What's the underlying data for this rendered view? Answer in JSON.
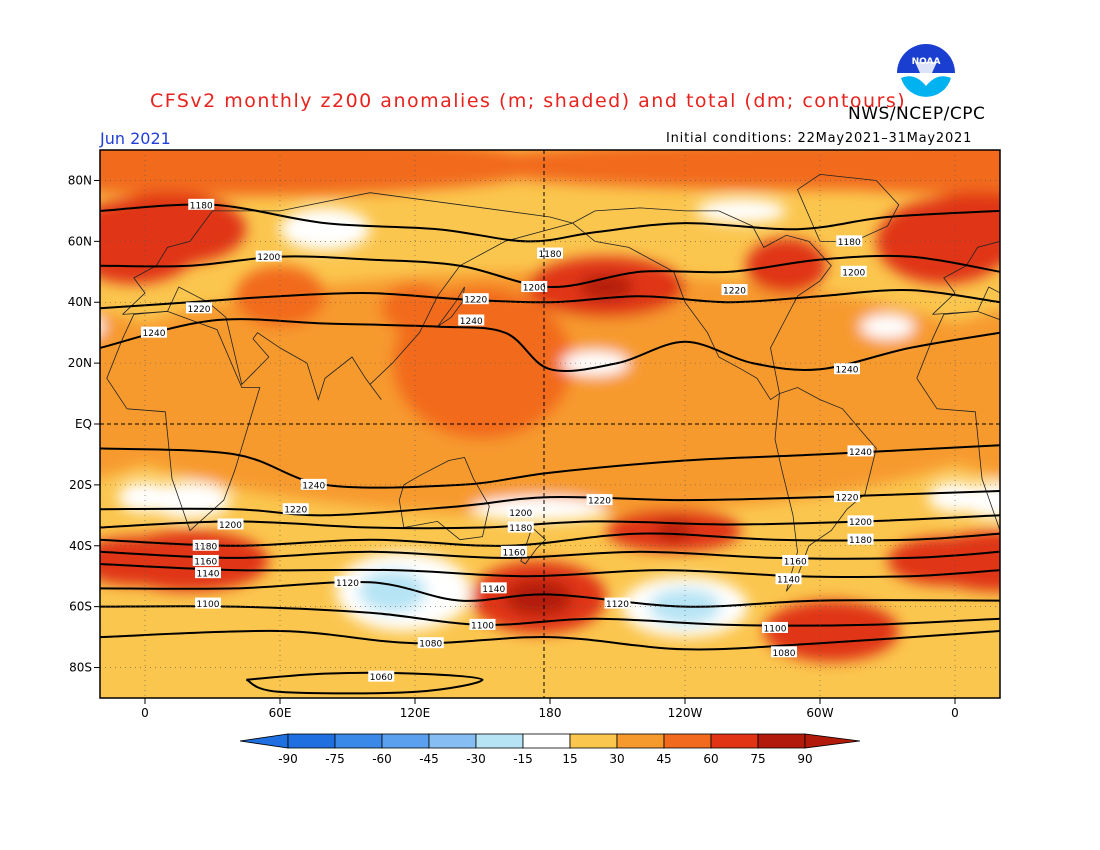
{
  "title": "CFSv2 monthly z200 anomalies (m; shaded) and total (dm; contours)",
  "month": "Jun 2021",
  "org": "NWS/NCEP/CPC",
  "initial_conditions": "Initial conditions: 22May2021–31May2021",
  "logo": {
    "text": "NOAA",
    "name": "noaa-logo"
  },
  "lat_labels": [
    {
      "lat": 80,
      "label": "80N"
    },
    {
      "lat": 60,
      "label": "60N"
    },
    {
      "lat": 40,
      "label": "40N"
    },
    {
      "lat": 20,
      "label": "20N"
    },
    {
      "lat": 0,
      "label": "EQ"
    },
    {
      "lat": -20,
      "label": "20S"
    },
    {
      "lat": -40,
      "label": "40S"
    },
    {
      "lat": -60,
      "label": "60S"
    },
    {
      "lat": -80,
      "label": "80S"
    }
  ],
  "lon_labels": [
    {
      "lon": 0,
      "label": "0"
    },
    {
      "lon": 60,
      "label": "60E"
    },
    {
      "lon": 120,
      "label": "120E"
    },
    {
      "lon": 180,
      "label": "180"
    },
    {
      "lon": 240,
      "label": "120W"
    },
    {
      "lon": 300,
      "label": "60W"
    },
    {
      "lon": 360,
      "label": "0"
    }
  ],
  "colorbar": {
    "labels": [
      "-90",
      "-75",
      "-60",
      "-45",
      "-30",
      "-15",
      "15",
      "30",
      "45",
      "60",
      "75",
      "90"
    ],
    "colors": [
      "#1f6fe0",
      "#3a88e8",
      "#5aa0ee",
      "#86bdf2",
      "#b6e4f4",
      "#ffffff",
      "#fde58a",
      "#fbc64e",
      "#f79a2e",
      "#f26a1e",
      "#e03414",
      "#b21a0c"
    ]
  },
  "contours": [
    {
      "label": "1180",
      "points": [
        [
          -20,
          70
        ],
        [
          30,
          72
        ],
        [
          80,
          66
        ],
        [
          130,
          64
        ],
        [
          170,
          60
        ],
        [
          200,
          63
        ],
        [
          240,
          66
        ],
        [
          290,
          64
        ],
        [
          330,
          68
        ],
        [
          380,
          70
        ]
      ]
    },
    {
      "label": "1200",
      "points": [
        [
          -20,
          52
        ],
        [
          20,
          52
        ],
        [
          60,
          55
        ],
        [
          100,
          54
        ],
        [
          140,
          52
        ],
        [
          180,
          45
        ],
        [
          220,
          50
        ],
        [
          260,
          50
        ],
        [
          300,
          54
        ],
        [
          340,
          55
        ],
        [
          380,
          50
        ]
      ]
    },
    {
      "label": "1220",
      "points": [
        [
          -20,
          38
        ],
        [
          20,
          40
        ],
        [
          60,
          42
        ],
        [
          100,
          43
        ],
        [
          140,
          41
        ],
        [
          180,
          40
        ],
        [
          220,
          42
        ],
        [
          260,
          40
        ],
        [
          300,
          42
        ],
        [
          340,
          44
        ],
        [
          380,
          40
        ]
      ]
    },
    {
      "label": "1240",
      "points": [
        [
          -20,
          25
        ],
        [
          30,
          34
        ],
        [
          80,
          33
        ],
        [
          130,
          32
        ],
        [
          160,
          30
        ],
        [
          180,
          18
        ],
        [
          210,
          20
        ],
        [
          240,
          27
        ],
        [
          270,
          20
        ],
        [
          300,
          18
        ],
        [
          340,
          25
        ],
        [
          380,
          30
        ]
      ]
    },
    {
      "label": "1240",
      "points": [
        [
          -20,
          -8
        ],
        [
          40,
          -10
        ],
        [
          80,
          -20
        ],
        [
          140,
          -20
        ],
        [
          180,
          -16
        ],
        [
          240,
          -12
        ],
        [
          300,
          -10
        ],
        [
          380,
          -7
        ]
      ]
    },
    {
      "label": "1220",
      "points": [
        [
          -20,
          -28
        ],
        [
          40,
          -28
        ],
        [
          80,
          -30
        ],
        [
          140,
          -27
        ],
        [
          180,
          -24
        ],
        [
          240,
          -25
        ],
        [
          300,
          -24
        ],
        [
          380,
          -22
        ]
      ]
    },
    {
      "label": "1200",
      "points": [
        [
          -20,
          -34
        ],
        [
          40,
          -32
        ],
        [
          100,
          -34
        ],
        [
          150,
          -34
        ],
        [
          200,
          -32
        ],
        [
          260,
          -33
        ],
        [
          320,
          -32
        ],
        [
          380,
          -30
        ]
      ]
    },
    {
      "label": "1180",
      "points": [
        [
          -20,
          -38
        ],
        [
          40,
          -40
        ],
        [
          100,
          -38
        ],
        [
          160,
          -40
        ],
        [
          220,
          -36
        ],
        [
          280,
          -38
        ],
        [
          340,
          -38
        ],
        [
          380,
          -36
        ]
      ]
    },
    {
      "label": "1160",
      "points": [
        [
          -20,
          -42
        ],
        [
          40,
          -44
        ],
        [
          100,
          -42
        ],
        [
          160,
          -44
        ],
        [
          220,
          -42
        ],
        [
          280,
          -44
        ],
        [
          340,
          -44
        ],
        [
          380,
          -42
        ]
      ]
    },
    {
      "label": "1140",
      "points": [
        [
          -20,
          -46
        ],
        [
          40,
          -48
        ],
        [
          110,
          -48
        ],
        [
          170,
          -50
        ],
        [
          230,
          -48
        ],
        [
          290,
          -50
        ],
        [
          340,
          -50
        ],
        [
          380,
          -48
        ]
      ]
    },
    {
      "label": "1120",
      "points": [
        [
          -20,
          -54
        ],
        [
          40,
          -54
        ],
        [
          100,
          -52
        ],
        [
          140,
          -58
        ],
        [
          180,
          -56
        ],
        [
          240,
          -60
        ],
        [
          300,
          -58
        ],
        [
          380,
          -58
        ]
      ]
    },
    {
      "label": "1100",
      "points": [
        [
          -20,
          -60
        ],
        [
          40,
          -60
        ],
        [
          100,
          -62
        ],
        [
          150,
          -66
        ],
        [
          200,
          -64
        ],
        [
          260,
          -66
        ],
        [
          320,
          -66
        ],
        [
          380,
          -64
        ]
      ]
    },
    {
      "label": "1080",
      "points": [
        [
          -20,
          -70
        ],
        [
          60,
          -68
        ],
        [
          120,
          -72
        ],
        [
          180,
          -70
        ],
        [
          240,
          -74
        ],
        [
          300,
          -72
        ],
        [
          380,
          -68
        ]
      ]
    },
    {
      "label": "1060",
      "points": [
        [
          45,
          -84
        ],
        [
          80,
          -82
        ],
        [
          120,
          -82
        ],
        [
          150,
          -84
        ],
        [
          120,
          -88
        ],
        [
          60,
          -88
        ],
        [
          45,
          -84
        ]
      ]
    }
  ],
  "contour_labels": [
    {
      "text": "1180",
      "lon": 25,
      "lat": 72
    },
    {
      "text": "1180",
      "lon": 180,
      "lat": 56
    },
    {
      "text": "1180",
      "lon": 313,
      "lat": 60
    },
    {
      "text": "1200",
      "lon": 55,
      "lat": 55
    },
    {
      "text": "1200",
      "lon": 173,
      "lat": 45
    },
    {
      "text": "1200",
      "lon": 315,
      "lat": 50
    },
    {
      "text": "1220",
      "lon": 24,
      "lat": 38
    },
    {
      "text": "1220",
      "lon": 147,
      "lat": 41
    },
    {
      "text": "1220",
      "lon": 262,
      "lat": 44
    },
    {
      "text": "1240",
      "lon": 4,
      "lat": 30
    },
    {
      "text": "1240",
      "lon": 145,
      "lat": 34
    },
    {
      "text": "1240",
      "lon": 312,
      "lat": 18
    },
    {
      "text": "1240",
      "lon": 75,
      "lat": -20
    },
    {
      "text": "1240",
      "lon": 318,
      "lat": -9
    },
    {
      "text": "1220",
      "lon": 67,
      "lat": -28
    },
    {
      "text": "1220",
      "lon": 202,
      "lat": -25
    },
    {
      "text": "1220",
      "lon": 312,
      "lat": -24
    },
    {
      "text": "1200",
      "lon": 38,
      "lat": -33
    },
    {
      "text": "1200",
      "lon": 167,
      "lat": -29
    },
    {
      "text": "1200",
      "lon": 318,
      "lat": -32
    },
    {
      "text": "1180",
      "lon": 167,
      "lat": -34
    },
    {
      "text": "1180",
      "lon": 318,
      "lat": -38
    },
    {
      "text": "1180",
      "lon": 27,
      "lat": -40
    },
    {
      "text": "1160",
      "lon": 27,
      "lat": -45
    },
    {
      "text": "1160",
      "lon": 164,
      "lat": -42
    },
    {
      "text": "1160",
      "lon": 289,
      "lat": -45
    },
    {
      "text": "1140",
      "lon": 28,
      "lat": -49
    },
    {
      "text": "1140",
      "lon": 155,
      "lat": -54
    },
    {
      "text": "1140",
      "lon": 286,
      "lat": -51
    },
    {
      "text": "1120",
      "lon": 90,
      "lat": -52
    },
    {
      "text": "1120",
      "lon": 210,
      "lat": -59
    },
    {
      "text": "1100",
      "lon": 28,
      "lat": -59
    },
    {
      "text": "1100",
      "lon": 150,
      "lat": -66
    },
    {
      "text": "1100",
      "lon": 280,
      "lat": -67
    },
    {
      "text": "1080",
      "lon": 127,
      "lat": -72
    },
    {
      "text": "1080",
      "lon": 284,
      "lat": -75
    },
    {
      "text": "1060",
      "lon": 105,
      "lat": -83
    }
  ],
  "anomaly_blobs": [
    {
      "lon": 180,
      "lat": 10,
      "rx": 220,
      "ry": 40,
      "level": 45
    },
    {
      "lon": 40,
      "lat": 85,
      "rx": 140,
      "ry": 10,
      "level": 60
    },
    {
      "lon": 300,
      "lat": 85,
      "rx": 160,
      "ry": 8,
      "level": 60
    },
    {
      "lon": 10,
      "lat": 64,
      "rx": 35,
      "ry": 12,
      "level": 75
    },
    {
      "lon": 355,
      "lat": 60,
      "rx": 30,
      "ry": 14,
      "level": 75
    },
    {
      "lon": 205,
      "lat": 45,
      "rx": 35,
      "ry": 10,
      "level": 75
    },
    {
      "lon": 205,
      "lat": 45,
      "rx": 12,
      "ry": 4,
      "level": 90
    },
    {
      "lon": 285,
      "lat": 52,
      "rx": 18,
      "ry": 9,
      "level": 75
    },
    {
      "lon": 60,
      "lat": 42,
      "rx": 20,
      "ry": 10,
      "level": 60
    },
    {
      "lon": 120,
      "lat": 38,
      "rx": 15,
      "ry": 8,
      "level": 60
    },
    {
      "lon": 150,
      "lat": 20,
      "rx": 40,
      "ry": 25,
      "level": 60
    },
    {
      "lon": 235,
      "lat": -35,
      "rx": 30,
      "ry": 7,
      "level": 75
    },
    {
      "lon": 235,
      "lat": -35,
      "rx": 8,
      "ry": 3,
      "level": 90
    },
    {
      "lon": 175,
      "lat": -57,
      "rx": 30,
      "ry": 12,
      "level": 75
    },
    {
      "lon": 175,
      "lat": -57,
      "rx": 15,
      "ry": 6,
      "level": 90
    },
    {
      "lon": 305,
      "lat": -68,
      "rx": 30,
      "ry": 10,
      "level": 75
    },
    {
      "lon": 355,
      "lat": -45,
      "rx": 25,
      "ry": 8,
      "level": 75
    },
    {
      "lon": 20,
      "lat": -45,
      "rx": 35,
      "ry": 10,
      "level": 75
    },
    {
      "lon": 115,
      "lat": -55,
      "rx": 30,
      "ry": 13,
      "level": -15
    },
    {
      "lon": 110,
      "lat": -55,
      "rx": 15,
      "ry": 7,
      "level": -30
    },
    {
      "lon": 240,
      "lat": -60,
      "rx": 28,
      "ry": 10,
      "level": -15
    },
    {
      "lon": 240,
      "lat": -60,
      "rx": 16,
      "ry": 6,
      "level": -30
    },
    {
      "lon": 20,
      "lat": -25,
      "rx": 18,
      "ry": 6,
      "level": -15
    },
    {
      "lon": 360,
      "lat": -24,
      "rx": 12,
      "ry": 5,
      "level": -15
    },
    {
      "lon": 175,
      "lat": -28,
      "rx": 30,
      "ry": 4,
      "level": -15
    },
    {
      "lon": 80,
      "lat": 64,
      "rx": 20,
      "ry": 7,
      "level": -15
    },
    {
      "lon": 200,
      "lat": 20,
      "rx": 15,
      "ry": 4,
      "level": -15
    },
    {
      "lon": 330,
      "lat": 32,
      "rx": 12,
      "ry": 4,
      "level": -15
    },
    {
      "lon": 265,
      "lat": 70,
      "rx": 20,
      "ry": 4,
      "level": -15
    }
  ]
}
